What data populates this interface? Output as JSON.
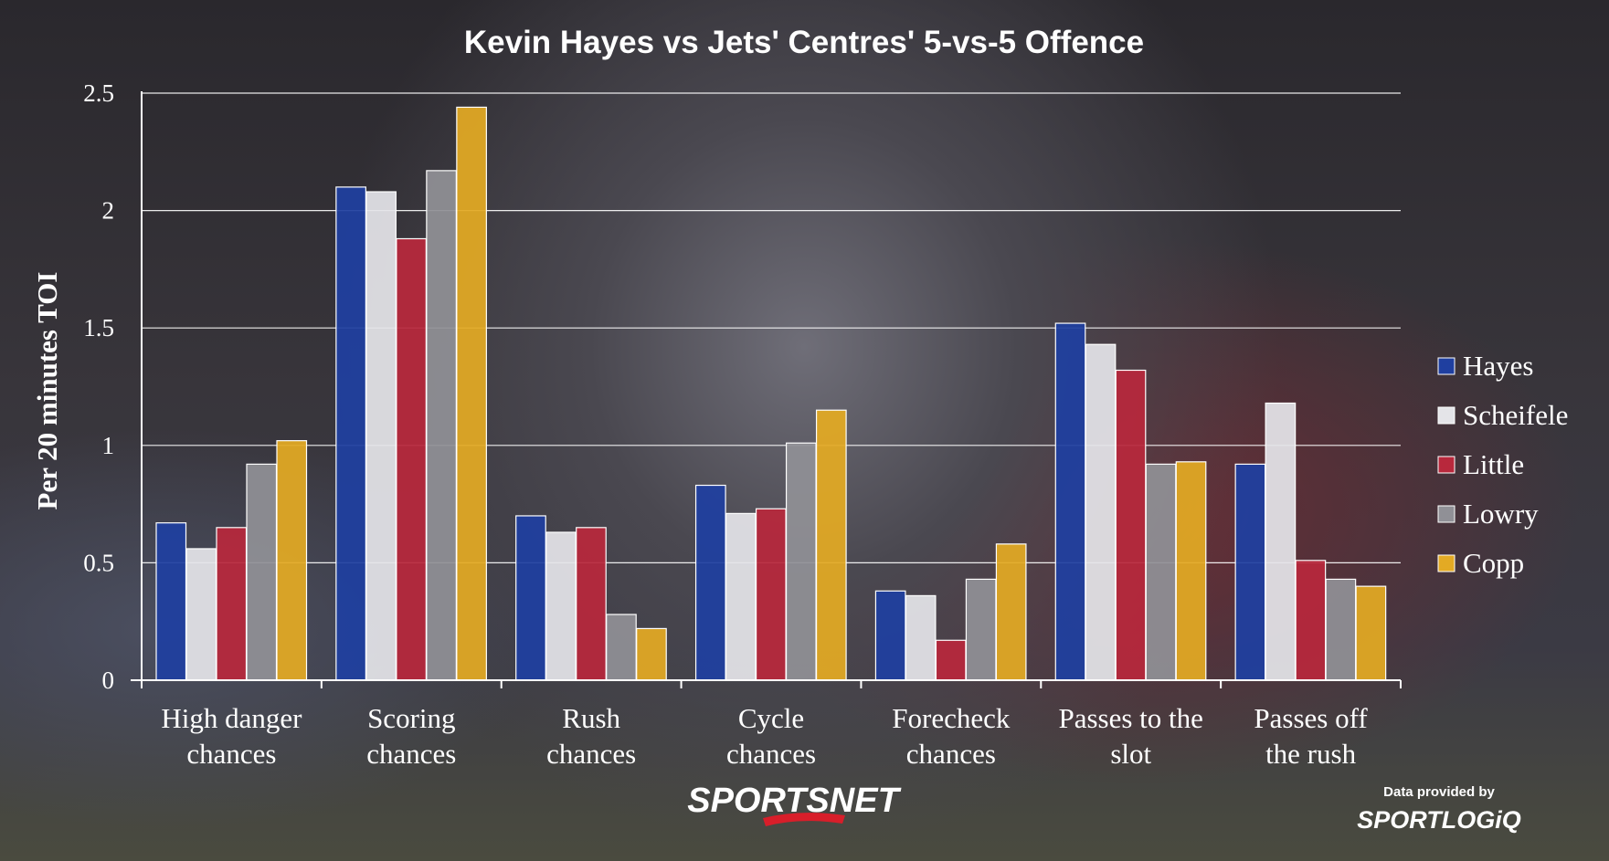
{
  "chart_data": {
    "type": "bar",
    "title": "Kevin Hayes vs Jets' Centres' 5-vs-5 Offence",
    "ylabel": "Per 20 minutes TOI",
    "xlabel": "",
    "ylim": [
      0,
      2.5
    ],
    "yticks": [
      "0",
      "0.5",
      "1",
      "1.5",
      "2",
      "2.5"
    ],
    "categories": [
      [
        "High danger",
        "chances"
      ],
      [
        "Scoring",
        "chances"
      ],
      [
        "Rush",
        "chances"
      ],
      [
        "Cycle",
        "chances"
      ],
      [
        "Forecheck",
        "chances"
      ],
      [
        "Passes to the",
        "slot"
      ],
      [
        "Passes off",
        "the rush"
      ]
    ],
    "series": [
      {
        "name": "Hayes",
        "color": "#1f3fa0",
        "values": [
          0.67,
          2.1,
          0.7,
          0.83,
          0.38,
          1.52,
          0.92
        ]
      },
      {
        "name": "Scheifele",
        "color": "#e4e4e8",
        "values": [
          0.56,
          2.08,
          0.63,
          0.71,
          0.36,
          1.43,
          1.18
        ]
      },
      {
        "name": "Little",
        "color": "#b8283c",
        "values": [
          0.65,
          1.88,
          0.65,
          0.73,
          0.17,
          1.32,
          0.51
        ]
      },
      {
        "name": "Lowry",
        "color": "#909096",
        "values": [
          0.92,
          2.17,
          0.28,
          1.01,
          0.43,
          0.92,
          0.43
        ]
      },
      {
        "name": "Copp",
        "color": "#e3aa24",
        "values": [
          1.02,
          2.44,
          0.22,
          1.15,
          0.58,
          0.93,
          0.4
        ]
      }
    ],
    "grid": true,
    "legend_position": "right"
  },
  "branding": {
    "logo_text": "SPORTSNET",
    "credit_line": "Data provided by",
    "credit_brand": "SPORTLOGiQ"
  }
}
